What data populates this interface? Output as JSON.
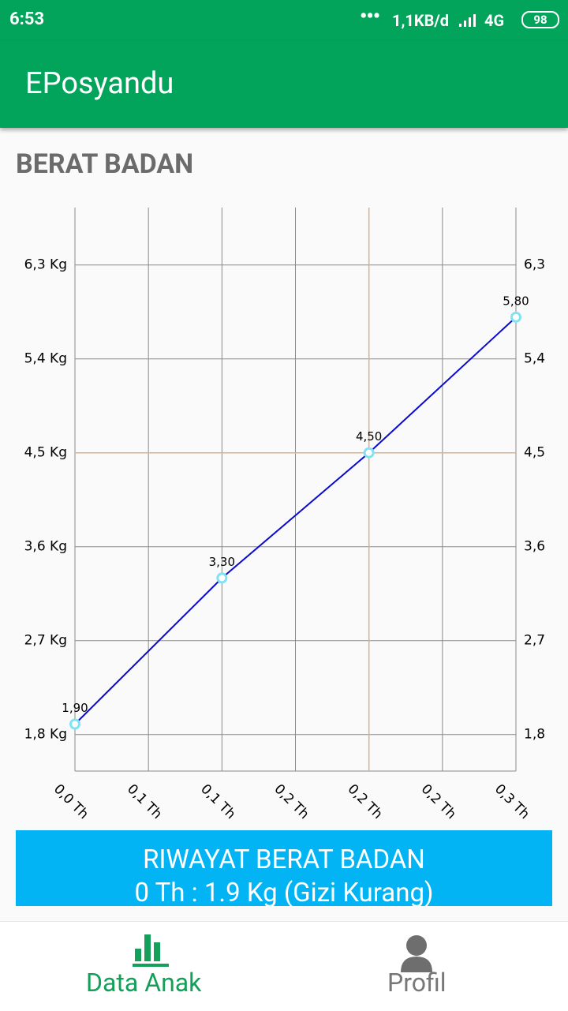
{
  "status_bar": {
    "time": "6:53",
    "network": "1,1KB/d",
    "signal": "4G",
    "battery": "98"
  },
  "app_bar": {
    "title": "EPosyandu"
  },
  "section_title": "BERAT BADAN",
  "chart_data": {
    "type": "line",
    "x": [
      0,
      0.1,
      0.2,
      0.3
    ],
    "series": [
      {
        "color": "#0a0ad0",
        "point_color": "#7fe3f3",
        "values": [
          1.9,
          3.3,
          4.5,
          5.8
        ],
        "value_labels": [
          "1,90",
          "3,30",
          "4,50",
          "5,80"
        ]
      }
    ],
    "xlim": [
      0,
      0.3
    ],
    "xticks": [
      {
        "value": 0,
        "label": "0,0 Th"
      },
      {
        "value": 0.05,
        "label": "0,1 Th"
      },
      {
        "value": 0.1,
        "label": "0,1 Th"
      },
      {
        "value": 0.15,
        "label": "0,2 Th"
      },
      {
        "value": 0.2,
        "label": "0,2 Th"
      },
      {
        "value": 0.25,
        "label": "0,2 Th"
      },
      {
        "value": 0.3,
        "label": "0,3 Th"
      }
    ],
    "ylim": [
      1.45,
      6.85
    ],
    "yticks": [
      {
        "value": 1.8,
        "label": "1,8 Kg"
      },
      {
        "value": 2.7,
        "label": "2,7 Kg"
      },
      {
        "value": 3.6,
        "label": "3,6 Kg"
      },
      {
        "value": 4.5,
        "label": "4,5 Kg"
      },
      {
        "value": 5.4,
        "label": "5,4 Kg"
      },
      {
        "value": 6.3,
        "label": "6,3 Kg"
      }
    ],
    "y2lim": [
      1.45,
      6.85
    ],
    "y2ticks": [
      {
        "value": 1.8,
        "label": "1,8"
      },
      {
        "value": 2.7,
        "label": "2,7"
      },
      {
        "value": 3.6,
        "label": "3,6"
      },
      {
        "value": 4.5,
        "label": "4,5"
      },
      {
        "value": 5.4,
        "label": "5,4"
      },
      {
        "value": 6.3,
        "label": "6,3"
      }
    ],
    "grid": true,
    "highlight": {
      "x": 0.2,
      "y": 4.5,
      "color": "#d8b48a"
    }
  },
  "history_button": {
    "title": "RIWAYAT BERAT BADAN",
    "detail": "0 Th : 1.9 Kg (Gizi Kurang)"
  },
  "bottom_nav": {
    "items": [
      {
        "label": "Data Anak"
      },
      {
        "label": "Profil"
      }
    ]
  }
}
